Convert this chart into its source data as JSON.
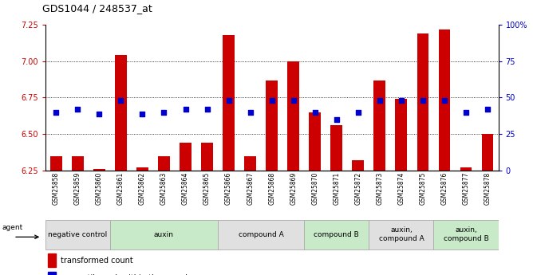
{
  "title": "GDS1044 / 248537_at",
  "samples": [
    "GSM25858",
    "GSM25859",
    "GSM25860",
    "GSM25861",
    "GSM25862",
    "GSM25863",
    "GSM25864",
    "GSM25865",
    "GSM25866",
    "GSM25867",
    "GSM25868",
    "GSM25869",
    "GSM25870",
    "GSM25871",
    "GSM25872",
    "GSM25873",
    "GSM25874",
    "GSM25875",
    "GSM25876",
    "GSM25877",
    "GSM25878"
  ],
  "red_values": [
    6.35,
    6.35,
    6.26,
    7.04,
    6.27,
    6.35,
    6.44,
    6.44,
    7.18,
    6.35,
    6.87,
    7.0,
    6.65,
    6.56,
    6.32,
    6.87,
    6.74,
    7.19,
    7.22,
    6.27,
    6.5
  ],
  "blue_values": [
    6.65,
    6.67,
    6.64,
    6.73,
    6.64,
    6.65,
    6.67,
    6.67,
    6.73,
    6.65,
    6.73,
    6.73,
    6.65,
    6.6,
    6.65,
    6.73,
    6.73,
    6.73,
    6.73,
    6.65,
    6.67
  ],
  "ylim": [
    6.25,
    7.25
  ],
  "y_ticks_left": [
    6.25,
    6.5,
    6.75,
    7.0,
    7.25
  ],
  "y_ticks_right": [
    0,
    25,
    50,
    75,
    100
  ],
  "groups": [
    {
      "label": "negative control",
      "start": 0,
      "end": 3,
      "color": "#e0e0e0"
    },
    {
      "label": "auxin",
      "start": 3,
      "end": 8,
      "color": "#c8eac8"
    },
    {
      "label": "compound A",
      "start": 8,
      "end": 12,
      "color": "#e0e0e0"
    },
    {
      "label": "compound B",
      "start": 12,
      "end": 15,
      "color": "#c8eac8"
    },
    {
      "label": "auxin,\ncompound A",
      "start": 15,
      "end": 18,
      "color": "#e0e0e0"
    },
    {
      "label": "auxin,\ncompound B",
      "start": 18,
      "end": 21,
      "color": "#c8eac8"
    }
  ],
  "bar_color": "#cc0000",
  "dot_color": "#0000cc",
  "bar_width": 0.55,
  "dot_size": 18,
  "left_tick_color": "#cc0000",
  "right_tick_color": "#0000cc"
}
